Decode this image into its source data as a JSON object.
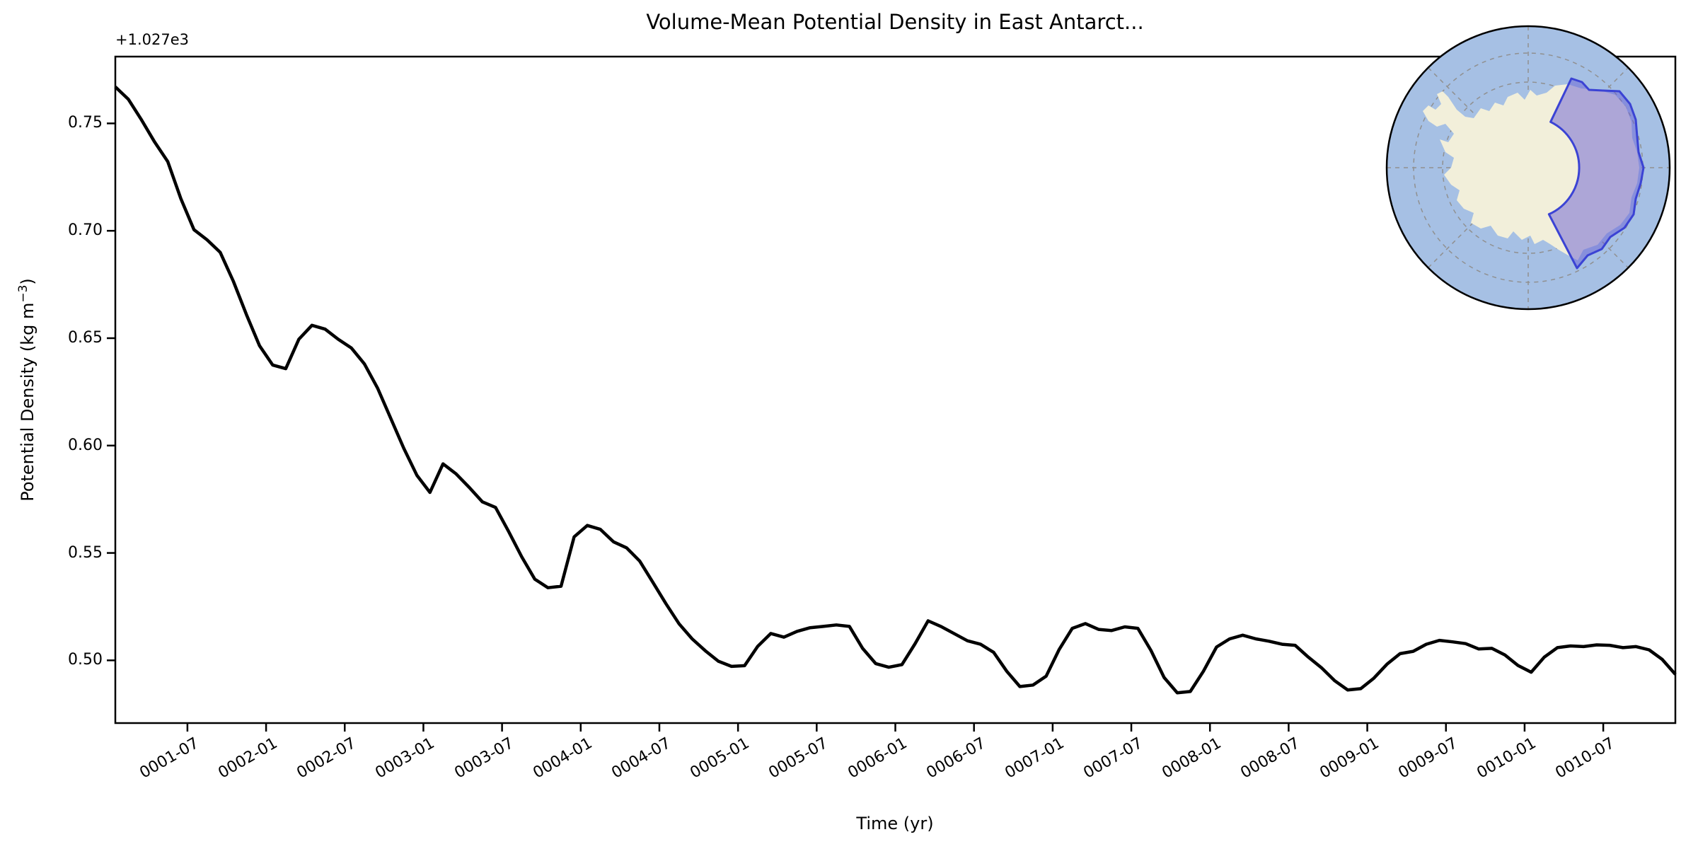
{
  "title": "Volume-Mean Potential Density in East Antarct...",
  "axes": {
    "offset_text": "+1.027e3",
    "xlabel": "Time (yr)",
    "ylabel_prefix": "Potential Density (kg m",
    "ylabel_superscript": "−3",
    "ylabel_suffix": ")"
  },
  "chart_data": {
    "type": "line",
    "title": "Volume-Mean Potential Density in East Antarct...",
    "xlabel": "Time (yr)",
    "ylabel": "Potential Density (kg m^-3)",
    "y_axis_offset": "+1.027e3",
    "y_base": 1027,
    "line_color": "#000000",
    "line_width": 4.5,
    "grid": false,
    "ylim": [
      0.4708,
      0.7811
    ],
    "yticks": [
      0.5,
      0.55,
      0.6,
      0.65,
      0.7,
      0.75
    ],
    "ytick_labels": [
      "0.50",
      "0.55",
      "0.60",
      "0.65",
      "0.70",
      "0.75"
    ],
    "xtick_month_positions": [
      5.5,
      11.5,
      17.5,
      23.5,
      29.5,
      35.5,
      41.5,
      47.5,
      53.5,
      59.5,
      65.5,
      71.5,
      77.5,
      83.5,
      89.5,
      95.5,
      101.5,
      107.5,
      113.5
    ],
    "xtick_labels": [
      "0001-07",
      "0002-01",
      "0002-07",
      "0003-01",
      "0003-07",
      "0004-01",
      "0004-07",
      "0005-01",
      "0005-07",
      "0006-01",
      "0006-07",
      "0007-01",
      "0007-07",
      "0008-01",
      "0008-07",
      "0009-01",
      "0009-07",
      "0010-01",
      "0010-07"
    ],
    "x": [
      "0001-01",
      "0001-02",
      "0001-03",
      "0001-04",
      "0001-05",
      "0001-06",
      "0001-07",
      "0001-08",
      "0001-09",
      "0001-10",
      "0001-11",
      "0001-12",
      "0002-01",
      "0002-02",
      "0002-03",
      "0002-04",
      "0002-05",
      "0002-06",
      "0002-07",
      "0002-08",
      "0002-09",
      "0002-10",
      "0002-11",
      "0002-12",
      "0003-01",
      "0003-02",
      "0003-03",
      "0003-04",
      "0003-05",
      "0003-06",
      "0003-07",
      "0003-08",
      "0003-09",
      "0003-10",
      "0003-11",
      "0003-12",
      "0004-01",
      "0004-02",
      "0004-03",
      "0004-04",
      "0004-05",
      "0004-06",
      "0004-07",
      "0004-08",
      "0004-09",
      "0004-10",
      "0004-11",
      "0004-12",
      "0005-01",
      "0005-02",
      "0005-03",
      "0005-04",
      "0005-05",
      "0005-06",
      "0005-07",
      "0005-08",
      "0005-09",
      "0005-10",
      "0005-11",
      "0005-12",
      "0006-01",
      "0006-02",
      "0006-03",
      "0006-04",
      "0006-05",
      "0006-06",
      "0006-07",
      "0006-08",
      "0006-09",
      "0006-10",
      "0006-11",
      "0006-12",
      "0007-01",
      "0007-02",
      "0007-03",
      "0007-04",
      "0007-05",
      "0007-06",
      "0007-07",
      "0007-08",
      "0007-09",
      "0007-10",
      "0007-11",
      "0007-12",
      "0008-01",
      "0008-02",
      "0008-03",
      "0008-04",
      "0008-05",
      "0008-06",
      "0008-07",
      "0008-08",
      "0008-09",
      "0008-10",
      "0008-11",
      "0008-12",
      "0009-01",
      "0009-02",
      "0009-03",
      "0009-04",
      "0009-05",
      "0009-06",
      "0009-07",
      "0009-08",
      "0009-09",
      "0009-10",
      "0009-11",
      "0009-12",
      "0010-01",
      "0010-02",
      "0010-03",
      "0010-04",
      "0010-05",
      "0010-06",
      "0010-07",
      "0010-08",
      "0010-09",
      "0010-10",
      "0010-11",
      "0010-12"
    ],
    "values": [
      0.767,
      0.7612,
      0.7516,
      0.7413,
      0.7322,
      0.715,
      0.7005,
      0.6958,
      0.69,
      0.6765,
      0.661,
      0.6465,
      0.6375,
      0.6358,
      0.6495,
      0.656,
      0.6542,
      0.6495,
      0.6455,
      0.638,
      0.6268,
      0.6128,
      0.5988,
      0.5862,
      0.5782,
      0.5915,
      0.5868,
      0.5805,
      0.5738,
      0.5712,
      0.56,
      0.5482,
      0.5378,
      0.5338,
      0.5345,
      0.5575,
      0.5628,
      0.561,
      0.5552,
      0.5524,
      0.5462,
      0.5364,
      0.5264,
      0.517,
      0.51,
      0.5045,
      0.4996,
      0.4972,
      0.4975,
      0.5065,
      0.5125,
      0.5108,
      0.5135,
      0.5152,
      0.5158,
      0.5165,
      0.5158,
      0.5056,
      0.4985,
      0.4968,
      0.498,
      0.5077,
      0.5184,
      0.5157,
      0.5124,
      0.5091,
      0.5075,
      0.5037,
      0.4949,
      0.4878,
      0.4885,
      0.4926,
      0.5051,
      0.5149,
      0.5171,
      0.5144,
      0.5139,
      0.5156,
      0.5149,
      0.5046,
      0.492,
      0.4849,
      0.4855,
      0.4949,
      0.5062,
      0.51,
      0.5117,
      0.51,
      0.5089,
      0.5075,
      0.507,
      0.5015,
      0.4966,
      0.4906,
      0.4862,
      0.4868,
      0.4917,
      0.4982,
      0.5031,
      0.5042,
      0.5075,
      0.5093,
      0.5086,
      0.5078,
      0.5053,
      0.5056,
      0.5025,
      0.4976,
      0.4945,
      0.5015,
      0.5059,
      0.5067,
      0.5064,
      0.5072,
      0.507,
      0.5059,
      0.5064,
      0.5049,
      0.5004,
      0.4935
    ]
  },
  "inset_map": {
    "description": "south-polar-stereographic-map-with-east-antarctica-region-highlighted",
    "ocean_color": "#a6c0e4",
    "land_color": "#f2efda",
    "region_fill": "#675ed4",
    "region_fill_opacity": 0.5,
    "region_border": "#3b43d4",
    "graticule_color": "#909090",
    "outline_color": "#000000"
  }
}
